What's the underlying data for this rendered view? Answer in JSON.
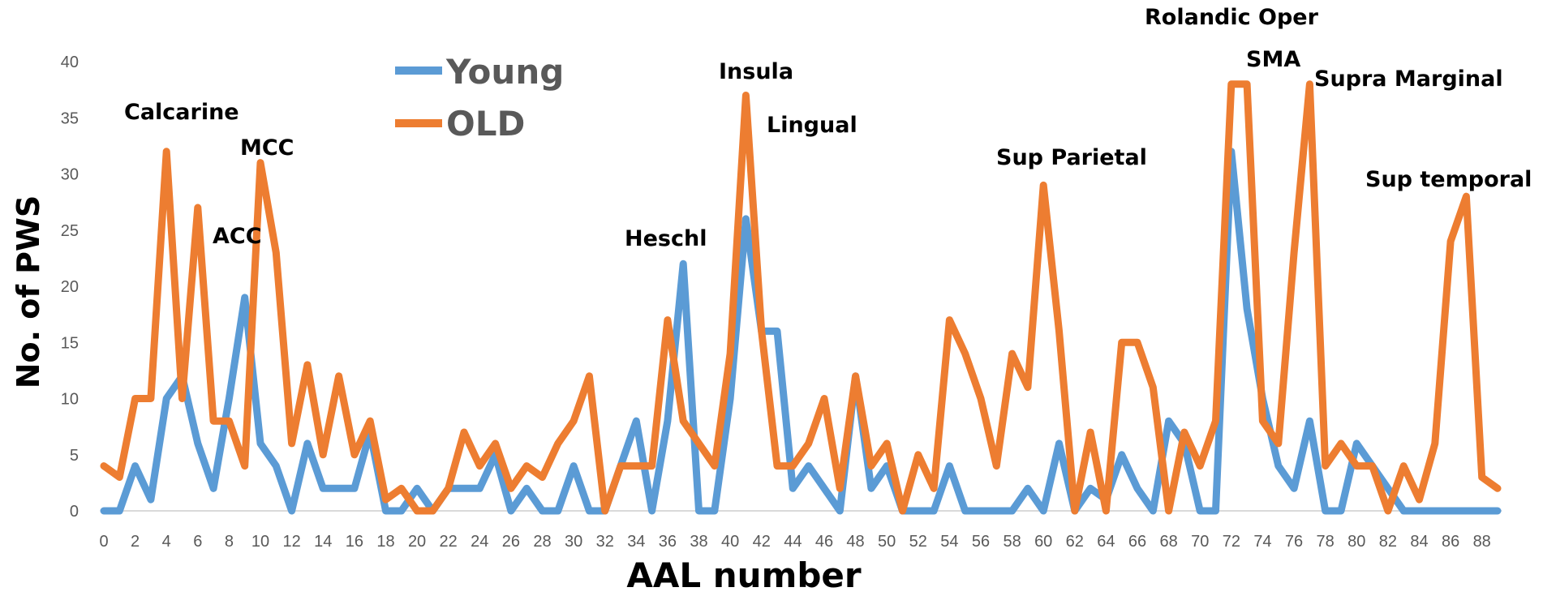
{
  "chart_data": {
    "type": "line",
    "xlabel": "AAL number",
    "ylabel": "No. of PWS",
    "ylim": [
      0,
      40
    ],
    "yticks": [
      "0",
      "5",
      "10",
      "15",
      "20",
      "25",
      "30",
      "35",
      "40"
    ],
    "xlim": [
      0,
      89
    ],
    "xticks": [
      "0",
      "2",
      "4",
      "6",
      "8",
      "10",
      "12",
      "14",
      "16",
      "18",
      "20",
      "22",
      "24",
      "26",
      "28",
      "30",
      "32",
      "34",
      "36",
      "38",
      "40",
      "42",
      "44",
      "46",
      "48",
      "50",
      "52",
      "54",
      "56",
      "58",
      "60",
      "62",
      "64",
      "66",
      "68",
      "70",
      "72",
      "74",
      "76",
      "78",
      "80",
      "82",
      "84",
      "86",
      "88"
    ],
    "grid": false,
    "legend_position": "top-left",
    "x": [
      0,
      1,
      2,
      3,
      4,
      5,
      6,
      7,
      8,
      9,
      10,
      11,
      12,
      13,
      14,
      15,
      16,
      17,
      18,
      19,
      20,
      21,
      22,
      23,
      24,
      25,
      26,
      27,
      28,
      29,
      30,
      31,
      32,
      33,
      34,
      35,
      36,
      37,
      38,
      39,
      40,
      41,
      42,
      43,
      44,
      45,
      46,
      47,
      48,
      49,
      50,
      51,
      52,
      53,
      54,
      55,
      56,
      57,
      58,
      59,
      60,
      61,
      62,
      63,
      64,
      65,
      66,
      67,
      68,
      69,
      70,
      71,
      72,
      73,
      74,
      75,
      76,
      77,
      78,
      79,
      80,
      81,
      82,
      83,
      84,
      85,
      86,
      87,
      88,
      89
    ],
    "series": [
      {
        "name": "Young",
        "color": "#5b9bd5",
        "values": [
          0,
          0,
          4,
          1,
          10,
          12,
          6,
          2,
          10,
          19,
          6,
          4,
          0,
          6,
          2,
          2,
          2,
          7,
          0,
          0,
          2,
          0,
          2,
          2,
          2,
          5,
          0,
          2,
          0,
          0,
          4,
          0,
          0,
          4,
          8,
          0,
          8,
          22,
          0,
          0,
          10,
          26,
          16,
          16,
          2,
          4,
          2,
          0,
          12,
          2,
          4,
          0,
          0,
          0,
          4,
          0,
          0,
          0,
          0,
          2,
          0,
          6,
          0,
          2,
          1,
          5,
          2,
          0,
          8,
          6,
          0,
          0,
          32,
          18,
          10,
          4,
          2,
          8,
          0,
          0,
          6,
          4,
          2,
          0,
          0,
          0,
          0,
          0,
          0,
          0
        ]
      },
      {
        "name": "OLD",
        "color": "#ed7d31",
        "values": [
          4,
          3,
          10,
          10,
          32,
          10,
          27,
          8,
          8,
          4,
          31,
          23,
          6,
          13,
          5,
          12,
          5,
          8,
          1,
          2,
          0,
          0,
          2,
          7,
          4,
          6,
          2,
          4,
          3,
          6,
          8,
          12,
          0,
          4,
          4,
          4,
          17,
          8,
          6,
          4,
          14,
          37,
          16,
          4,
          4,
          6,
          10,
          2,
          12,
          4,
          6,
          0,
          5,
          2,
          17,
          14,
          10,
          4,
          14,
          11,
          29,
          16,
          0,
          7,
          0,
          15,
          15,
          11,
          0,
          7,
          4,
          8,
          38,
          38,
          8,
          6,
          23,
          38,
          4,
          6,
          4,
          4,
          0,
          4,
          1,
          6,
          24,
          28,
          3,
          2
        ]
      }
    ],
    "annotations": [
      {
        "text": "Calcarine",
        "x": 4,
        "y": 32
      },
      {
        "text": "ACC",
        "x": 9,
        "y": 19
      },
      {
        "text": "MCC",
        "x": 10,
        "y": 31
      },
      {
        "text": "Heschl",
        "x": 37,
        "y": 22
      },
      {
        "text": "Insula",
        "x": 41,
        "y": 37
      },
      {
        "text": "Lingual",
        "x": 42,
        "y": 26
      },
      {
        "text": "Sup Parietal",
        "x": 60,
        "y": 29
      },
      {
        "text": "Rolandic Oper",
        "x": 72,
        "y": 38
      },
      {
        "text": "SMA",
        "x": 74,
        "y": 38
      },
      {
        "text": "Supra Marginal",
        "x": 77,
        "y": 38
      },
      {
        "text": "Sup temporal",
        "x": 87,
        "y": 28
      }
    ]
  }
}
